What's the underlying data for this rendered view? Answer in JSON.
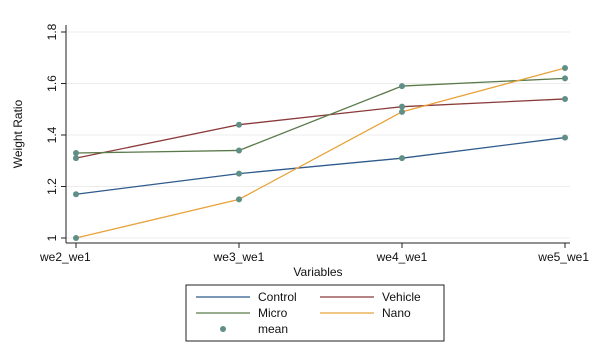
{
  "chart_data": {
    "type": "line",
    "xlabel": "Variables",
    "ylabel": "Weight Ratio",
    "categories": [
      "we2_we1",
      "we3_we1",
      "we4_we1",
      "we5_we1"
    ],
    "ylim": [
      1,
      1.8
    ],
    "yticks": [
      "1",
      "1.2",
      "1.4",
      "1.6",
      "1.8"
    ],
    "grid": "horizontal",
    "legend_position": "bottom",
    "series": [
      {
        "name": "Control",
        "color": "#2e5a8c",
        "values": [
          1.17,
          1.25,
          1.31,
          1.39
        ]
      },
      {
        "name": "Vehicle",
        "color": "#8b3a3a",
        "values": [
          1.31,
          1.44,
          1.51,
          1.54
        ]
      },
      {
        "name": "Micro",
        "color": "#5a7a4a",
        "values": [
          1.33,
          1.34,
          1.59,
          1.62
        ]
      },
      {
        "name": "Nano",
        "color": "#e8a33a",
        "values": [
          1.0,
          1.15,
          1.49,
          1.66
        ]
      }
    ],
    "mean_marker": {
      "name": "mean",
      "color": "#5f8f86"
    }
  }
}
